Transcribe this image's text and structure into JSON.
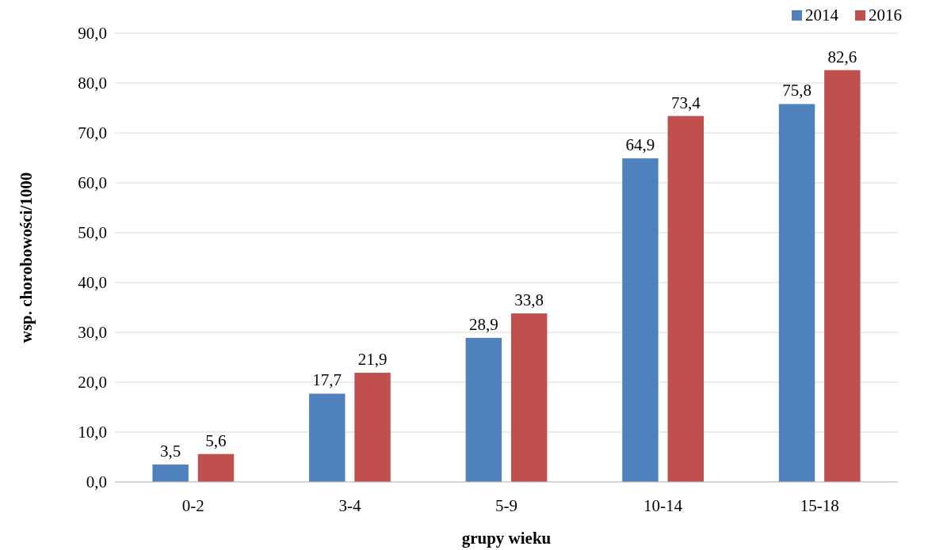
{
  "chart_data": {
    "type": "bar",
    "xlabel": "grupy wieku",
    "ylabel": "wsp. chorobowości/1000",
    "categories": [
      "0-2",
      "3-4",
      "5-9",
      "10-14",
      "15-18"
    ],
    "series": [
      {
        "name": "2014",
        "color": "#4f81bd",
        "values": [
          3.5,
          17.7,
          28.9,
          64.9,
          75.8
        ],
        "value_labels": [
          "3,5",
          "17,7",
          "28,9",
          "64,9",
          "75,8"
        ]
      },
      {
        "name": "2016",
        "color": "#c0504d",
        "values": [
          5.6,
          21.9,
          33.8,
          73.4,
          82.6
        ],
        "value_labels": [
          "5,6",
          "21,9",
          "33,8",
          "73,4",
          "82,6"
        ]
      }
    ],
    "ylim": [
      0,
      90
    ],
    "yticks": [
      {
        "value": 0,
        "label": "0,0"
      },
      {
        "value": 10,
        "label": "10,0"
      },
      {
        "value": 20,
        "label": "20,0"
      },
      {
        "value": 30,
        "label": "30,0"
      },
      {
        "value": 40,
        "label": "40,0"
      },
      {
        "value": 50,
        "label": "50,0"
      },
      {
        "value": 60,
        "label": "60,0"
      },
      {
        "value": 70,
        "label": "70,0"
      },
      {
        "value": 80,
        "label": "80,0"
      },
      {
        "value": 90,
        "label": "90,0"
      }
    ],
    "grid": "y",
    "legend": "top right"
  }
}
